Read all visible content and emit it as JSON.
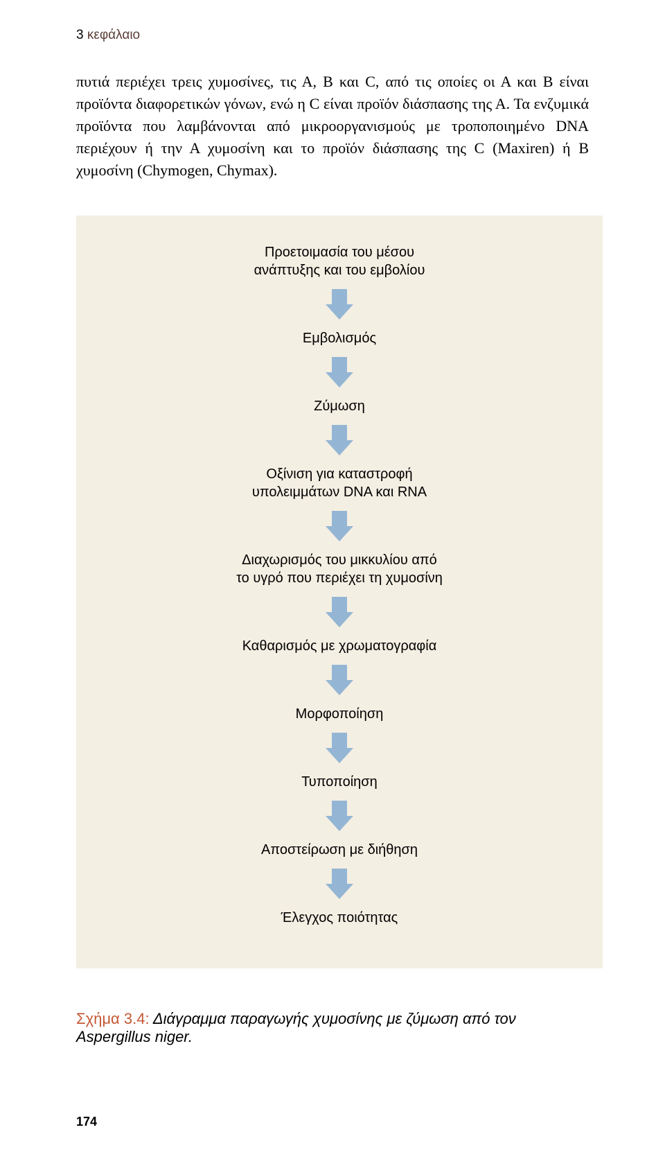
{
  "chapter": {
    "num": "3",
    "word": "κεφάλαιο"
  },
  "body_text": "πυτιά περιέχει τρεις χυμοσίνες, τις Α, Β και C, από τις οποίες οι Α και Β είναι προϊόντα διαφορετικών γόνων, ενώ η C είναι προϊόν διάσπασης της Α. Τα ενζυμικά προϊόντα που λαμβάνονται από μικροοργανισμούς με τροποποιημένο DNA περιέχουν ή την Α χυμοσίνη και το προϊόν διάσπασης της C (Maxiren) ή Β χυμοσίνη (Chymogen, Chymax).",
  "flowchart": {
    "type": "flowchart",
    "background_color": "#f4efe3",
    "arrow_color": "#94b6d4",
    "arrow_width": 22,
    "arrow_head_width": 40,
    "arrow_total_height": 44,
    "step_font_family": "Arial, Helvetica, sans-serif",
    "step_fontsize": 20,
    "step_color": "#000000",
    "steps": [
      "Προετοιμασία του μέσου\nανάπτυξης και του εμβολίου",
      "Εμβολισμός",
      "Ζύμωση",
      "Οξίνιση για καταστροφή\nυπολειμμάτων DNA και RNA",
      "Διαχωρισμός του μικκυλίου από\nτο υγρό που περιέχει τη χυμοσίνη",
      "Καθαρισμός με χρωματογραφία",
      "Μορφοποίηση",
      "Τυποποίηση",
      "Αποστείρωση με διήθηση",
      "Έλεγχος ποιότητας"
    ]
  },
  "caption": {
    "label": "Σχήμα 3.4:",
    "desc": " Διάγραμμα παραγωγής χυμοσίνης με ζύμωση από τον Aspergillus niger."
  },
  "page_number": "174"
}
